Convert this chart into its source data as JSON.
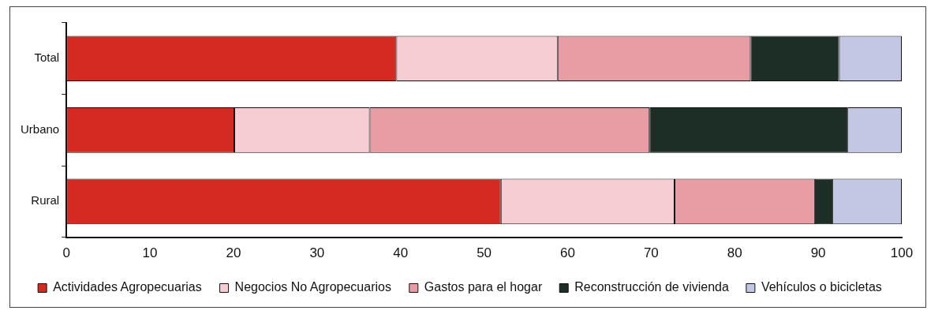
{
  "chart_data": {
    "type": "bar",
    "orientation": "horizontal",
    "stacked": true,
    "categories": [
      "Total",
      "Urbano",
      "Rural"
    ],
    "series": [
      {
        "name": "Actividades Agropecuarias",
        "color": "#d42a22",
        "values": [
          39.5,
          20.1,
          52.0
        ]
      },
      {
        "name": "Negocios No Agropecuarios",
        "color": "#f5cdd2",
        "values": [
          19.3,
          16.2,
          20.8
        ]
      },
      {
        "name": "Gastos para el hogar",
        "color": "#e89ca3",
        "values": [
          23.1,
          33.5,
          16.8
        ]
      },
      {
        "name": "Reconstrucción de vivienda",
        "color": "#1c2e26",
        "values": [
          10.6,
          23.7,
          2.1
        ]
      },
      {
        "name": "Vehículos o bicicletas",
        "color": "#c3c7e3",
        "values": [
          7.5,
          6.5,
          8.3
        ]
      }
    ],
    "xlim": [
      0,
      100
    ],
    "xticks": [
      0,
      10,
      20,
      30,
      40,
      50,
      60,
      70,
      80,
      90,
      100
    ],
    "grid": false,
    "legend": "bottom"
  }
}
